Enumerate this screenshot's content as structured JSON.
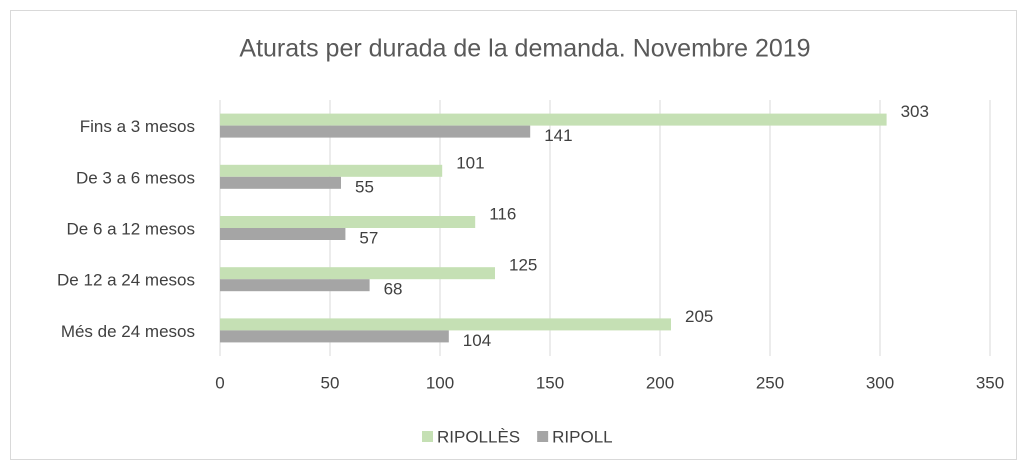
{
  "chart_data": {
    "type": "hbar",
    "title": "Aturats per durada de la demanda. Novembre 2019",
    "categories": [
      "Fins a 3 mesos",
      "De 3 a 6 mesos",
      "De 6 a 12 mesos",
      "De 12 a 24 mesos",
      "Més de 24 mesos"
    ],
    "series": [
      {
        "name": "RIPOLLÈS",
        "color": "#c5e0b4",
        "values": [
          303,
          101,
          116,
          125,
          205
        ]
      },
      {
        "name": "RIPOLL",
        "color": "#a5a5a5",
        "values": [
          141,
          55,
          57,
          68,
          104
        ]
      }
    ],
    "xlim": [
      0,
      350
    ],
    "xticks": [
      0,
      50,
      100,
      150,
      200,
      250,
      300,
      350
    ],
    "grid": true,
    "legend": "bottom"
  }
}
